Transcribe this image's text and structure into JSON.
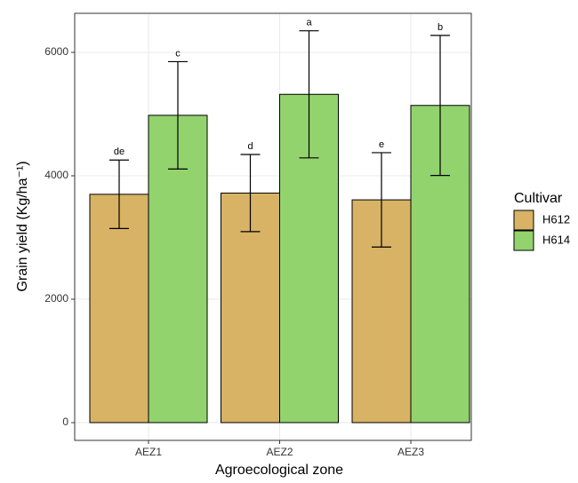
{
  "chart_data": {
    "type": "bar",
    "x_label": "Agroecological zone",
    "y_label": "Grain yield (Kg/ha⁻¹)",
    "categories": [
      "AEZ1",
      "AEZ2",
      "AEZ3"
    ],
    "series": [
      {
        "name": "H612",
        "color": "#d8b365",
        "values": [
          3700,
          3720,
          3610
        ],
        "errors": [
          555,
          625,
          765
        ],
        "labels": [
          "de",
          "d",
          "e"
        ]
      },
      {
        "name": "H614",
        "color": "#92d36e",
        "values": [
          4980,
          5320,
          5140
        ],
        "errors": [
          870,
          1030,
          1135
        ],
        "labels": [
          "c",
          "a",
          "b"
        ]
      }
    ],
    "ylim": [
      -288,
      6633
    ],
    "yticks": [
      0,
      2000,
      4000,
      6000
    ],
    "grid": true,
    "legend_title": "Cultivar",
    "legend_position": "right"
  }
}
